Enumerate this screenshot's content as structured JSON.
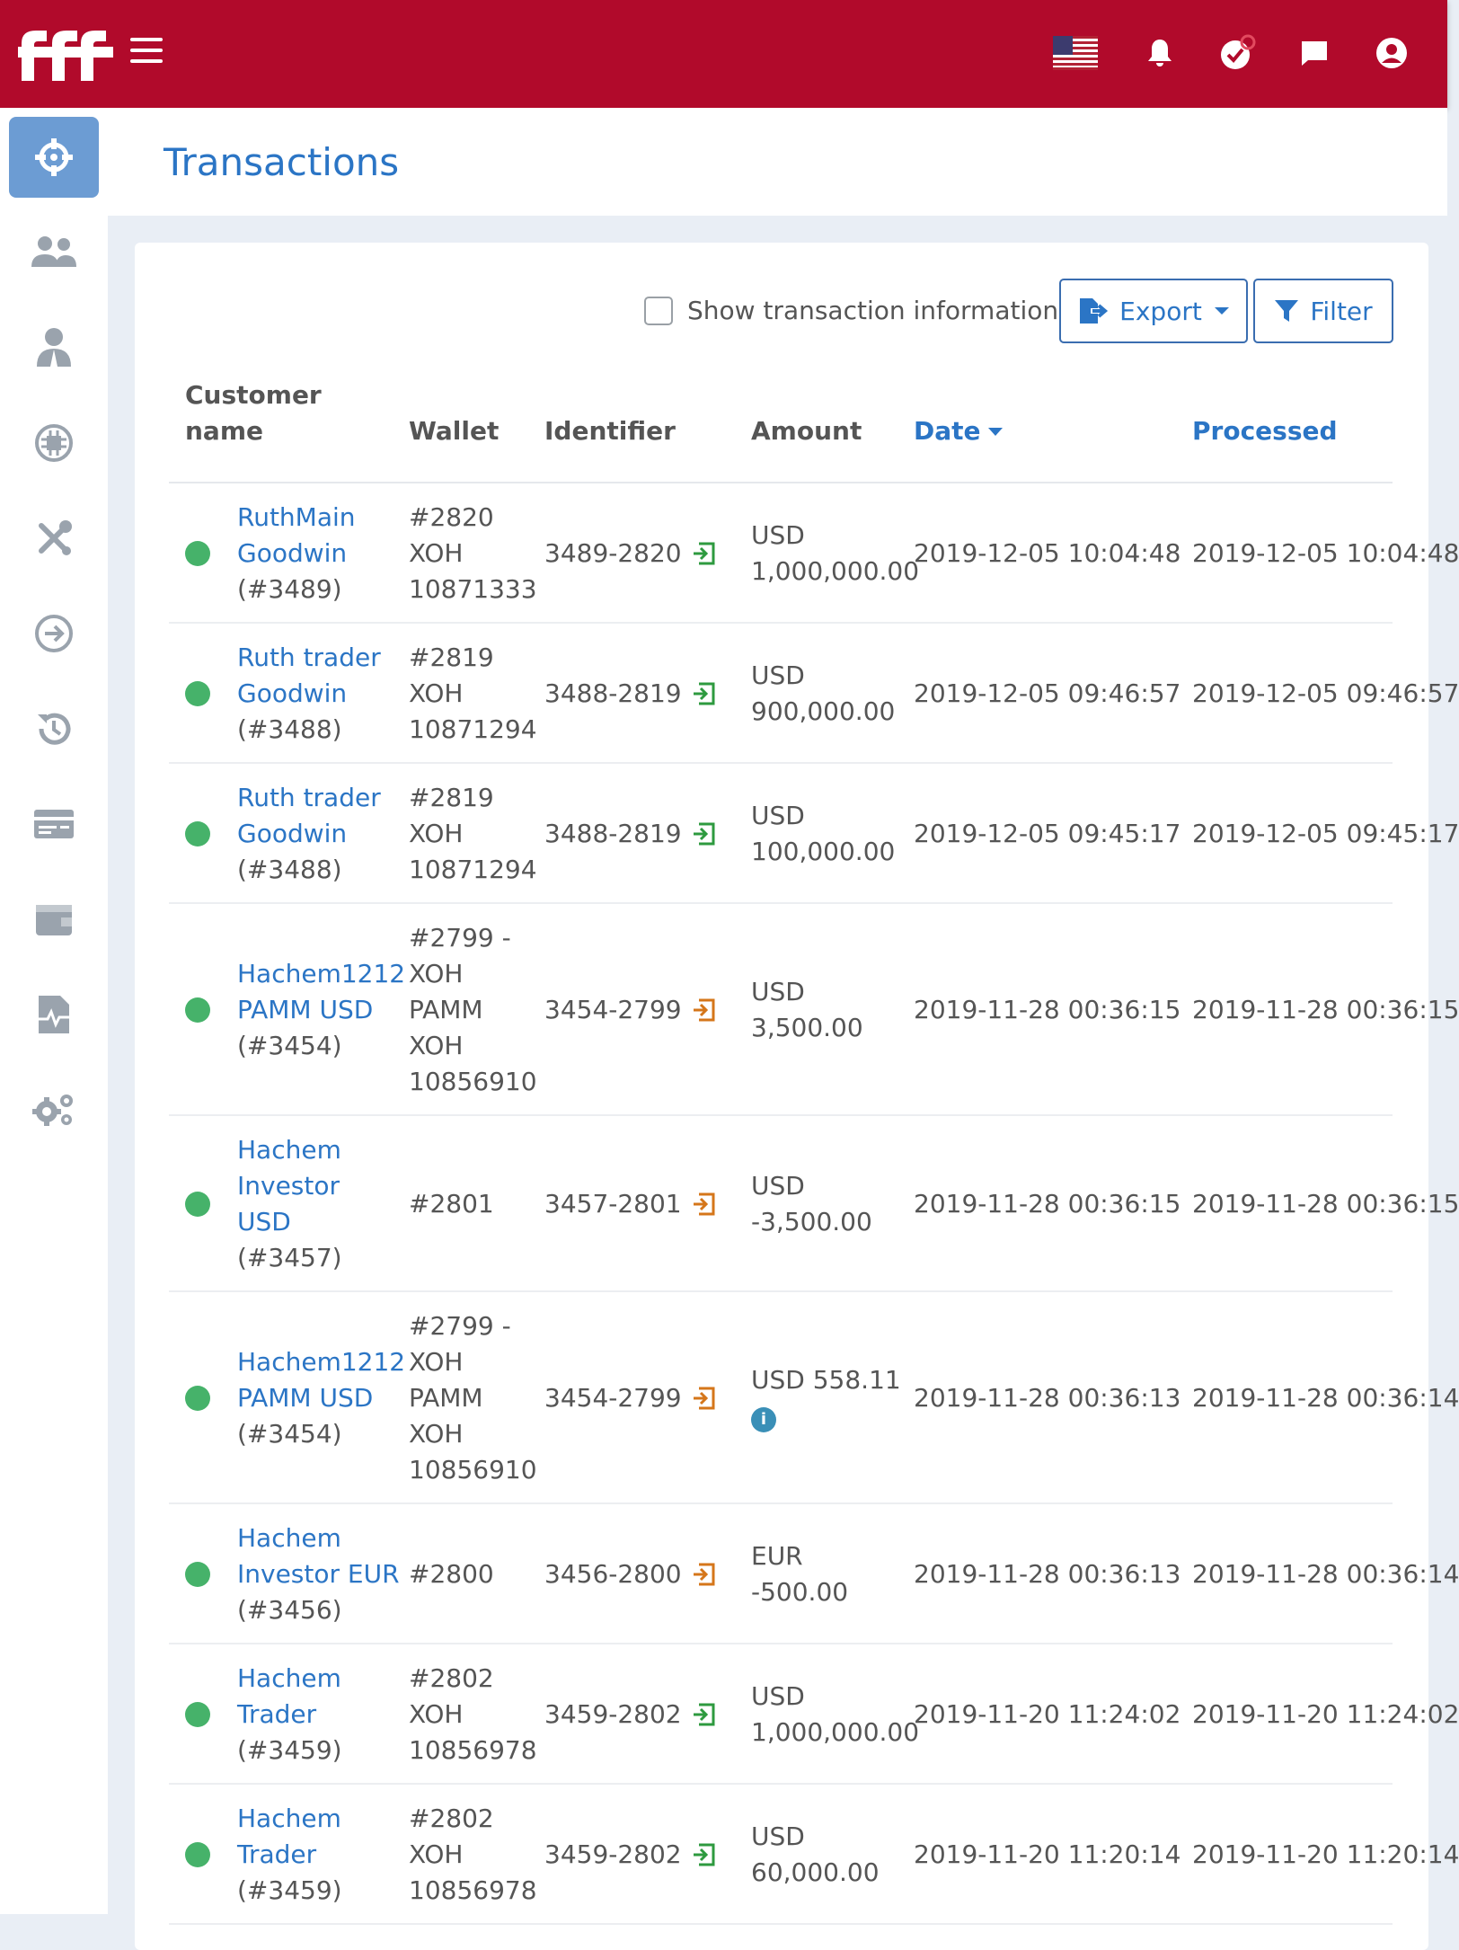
{
  "header": {
    "logo_text": "fff",
    "colors": {
      "brand": "#b10a2b",
      "accent": "#2b75c5",
      "active_nav": "#6c9cd3",
      "status_ok": "#46b26a"
    },
    "icons": [
      "us-flag-icon",
      "bell-icon",
      "tasks-check-icon",
      "chat-icon",
      "user-circle-icon"
    ]
  },
  "sidebar": {
    "items": [
      {
        "icon": "dashboard-crosshair-icon",
        "active": true
      },
      {
        "icon": "users-icon"
      },
      {
        "icon": "user-tie-icon"
      },
      {
        "icon": "chip-icon"
      },
      {
        "icon": "tools-icon"
      },
      {
        "icon": "arrow-right-circle-icon"
      },
      {
        "icon": "history-icon"
      },
      {
        "icon": "card-icon"
      },
      {
        "icon": "wallet-icon"
      },
      {
        "icon": "file-chart-icon"
      },
      {
        "icon": "cogs-icon"
      }
    ]
  },
  "page": {
    "title": "Transactions"
  },
  "toolbar": {
    "show_info_label": "Show transaction information",
    "show_info_checked": false,
    "export_label": "Export",
    "filter_label": "Filter"
  },
  "table": {
    "headers": {
      "customer_line1": "Customer",
      "customer_line2": "name",
      "wallet": "Wallet",
      "identifier": "Identifier",
      "amount": "Amount",
      "date": "Date",
      "processed": "Processed"
    },
    "rows": [
      {
        "name": [
          "RuthMain",
          "Goodwin"
        ],
        "name_id": "(#3489)",
        "wallet": [
          "#2820",
          "XOH",
          "10871333"
        ],
        "identifier": "3489-2820",
        "type": "deposit",
        "amount": [
          "USD",
          "1,000,000.00"
        ],
        "date": "2019-12-05 10:04:48",
        "processed": "2019-12-05 10:04:48"
      },
      {
        "name": [
          "Ruth trader",
          "Goodwin"
        ],
        "name_id": "(#3488)",
        "wallet": [
          "#2819",
          "XOH",
          "10871294"
        ],
        "identifier": "3488-2819",
        "type": "deposit",
        "amount": [
          "USD",
          "900,000.00"
        ],
        "date": "2019-12-05 09:46:57",
        "processed": "2019-12-05 09:46:57"
      },
      {
        "name": [
          "Ruth trader",
          "Goodwin"
        ],
        "name_id": "(#3488)",
        "wallet": [
          "#2819",
          "XOH",
          "10871294"
        ],
        "identifier": "3488-2819",
        "type": "deposit",
        "amount": [
          "USD",
          "100,000.00"
        ],
        "date": "2019-12-05 09:45:17",
        "processed": "2019-12-05 09:45:17"
      },
      {
        "name": [
          "Hachem1212",
          "PAMM USD"
        ],
        "name_id": "(#3454)",
        "wallet": [
          "#2799 -",
          "XOH",
          "PAMM",
          "XOH",
          "10856910"
        ],
        "identifier": "3454-2799",
        "type": "transfer",
        "amount": [
          "USD",
          "3,500.00"
        ],
        "date": "2019-11-28 00:36:15",
        "processed": "2019-11-28 00:36:15"
      },
      {
        "name": [
          "Hachem",
          "Investor",
          "USD"
        ],
        "name_id": "(#3457)",
        "wallet": [
          "#2801"
        ],
        "identifier": "3457-2801",
        "type": "transfer",
        "amount": [
          "USD",
          "-3,500.00"
        ],
        "date": "2019-11-28 00:36:15",
        "processed": "2019-11-28 00:36:15"
      },
      {
        "name": [
          "Hachem1212",
          "PAMM USD"
        ],
        "name_id": "(#3454)",
        "wallet": [
          "#2799 -",
          "XOH",
          "PAMM",
          "XOH",
          "10856910"
        ],
        "identifier": "3454-2799",
        "type": "transfer",
        "amount": [
          "USD 558.11"
        ],
        "amount_info": "i",
        "date": "2019-11-28 00:36:13",
        "processed": "2019-11-28 00:36:14"
      },
      {
        "name": [
          "Hachem",
          "Investor EUR"
        ],
        "name_id": "(#3456)",
        "wallet": [
          "#2800"
        ],
        "identifier": "3456-2800",
        "type": "transfer",
        "amount": [
          "EUR",
          "-500.00"
        ],
        "date": "2019-11-28 00:36:13",
        "processed": "2019-11-28 00:36:14"
      },
      {
        "name": [
          "Hachem",
          "Trader"
        ],
        "name_id": "(#3459)",
        "wallet": [
          "#2802",
          "XOH",
          "10856978"
        ],
        "identifier": "3459-2802",
        "type": "deposit",
        "amount": [
          "USD",
          "1,000,000.00"
        ],
        "date": "2019-11-20 11:24:02",
        "processed": "2019-11-20 11:24:02"
      },
      {
        "name": [
          "Hachem",
          "Trader"
        ],
        "name_id": "(#3459)",
        "wallet": [
          "#2802",
          "XOH",
          "10856978"
        ],
        "identifier": "3459-2802",
        "type": "deposit",
        "amount": [
          "USD",
          "60,000.00"
        ],
        "date": "2019-11-20 11:20:14",
        "processed": "2019-11-20 11:20:14"
      }
    ]
  }
}
